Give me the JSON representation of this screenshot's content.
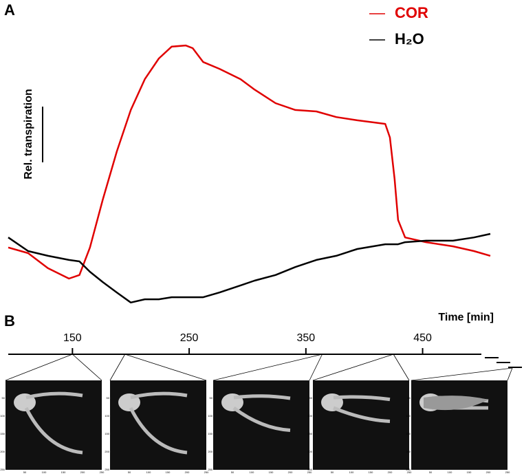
{
  "panel_labels": [
    "A",
    "B"
  ],
  "chart_data": {
    "type": "line",
    "ylabel": "Rel. transpiration",
    "xlabel": "Time [min]",
    "xlim": [
      95,
      508
    ],
    "xticks": [
      150,
      250,
      350,
      450
    ],
    "ylim": [
      0,
      100
    ],
    "x": [
      95,
      112,
      129,
      147,
      156,
      165,
      176,
      188,
      200,
      212,
      224,
      235,
      247,
      253,
      262,
      276,
      294,
      306,
      324,
      341,
      359,
      376,
      394,
      418,
      422,
      426,
      429,
      435,
      453,
      476,
      494,
      508
    ],
    "series": [
      {
        "name": "COR",
        "color": "#e00000",
        "values": [
          23.3,
          21.4,
          16.3,
          12.8,
          14.0,
          23.3,
          39.5,
          55.8,
          69.8,
          80.2,
          87.2,
          91.2,
          91.6,
          90.7,
          86.0,
          83.7,
          80.2,
          76.7,
          72.1,
          69.8,
          69.3,
          67.4,
          66.3,
          65.1,
          60.5,
          46.5,
          32.6,
          26.7,
          25.1,
          23.7,
          22.1,
          20.5
        ]
      },
      {
        "name": "H₂O",
        "color": "#000000",
        "values": [
          26.7,
          22.1,
          20.5,
          19.1,
          18.6,
          15.1,
          11.6,
          8.1,
          4.7,
          5.8,
          5.8,
          6.5,
          6.5,
          6.5,
          6.5,
          8.1,
          10.5,
          12.1,
          14.0,
          16.7,
          19.1,
          20.5,
          22.8,
          24.4,
          24.4,
          24.4,
          24.4,
          25.1,
          25.6,
          25.6,
          26.7,
          27.9
        ]
      }
    ],
    "image_times": [
      150,
      195,
      364,
      425
    ],
    "image_ticks": [
      50,
      100,
      150,
      200,
      250
    ]
  }
}
